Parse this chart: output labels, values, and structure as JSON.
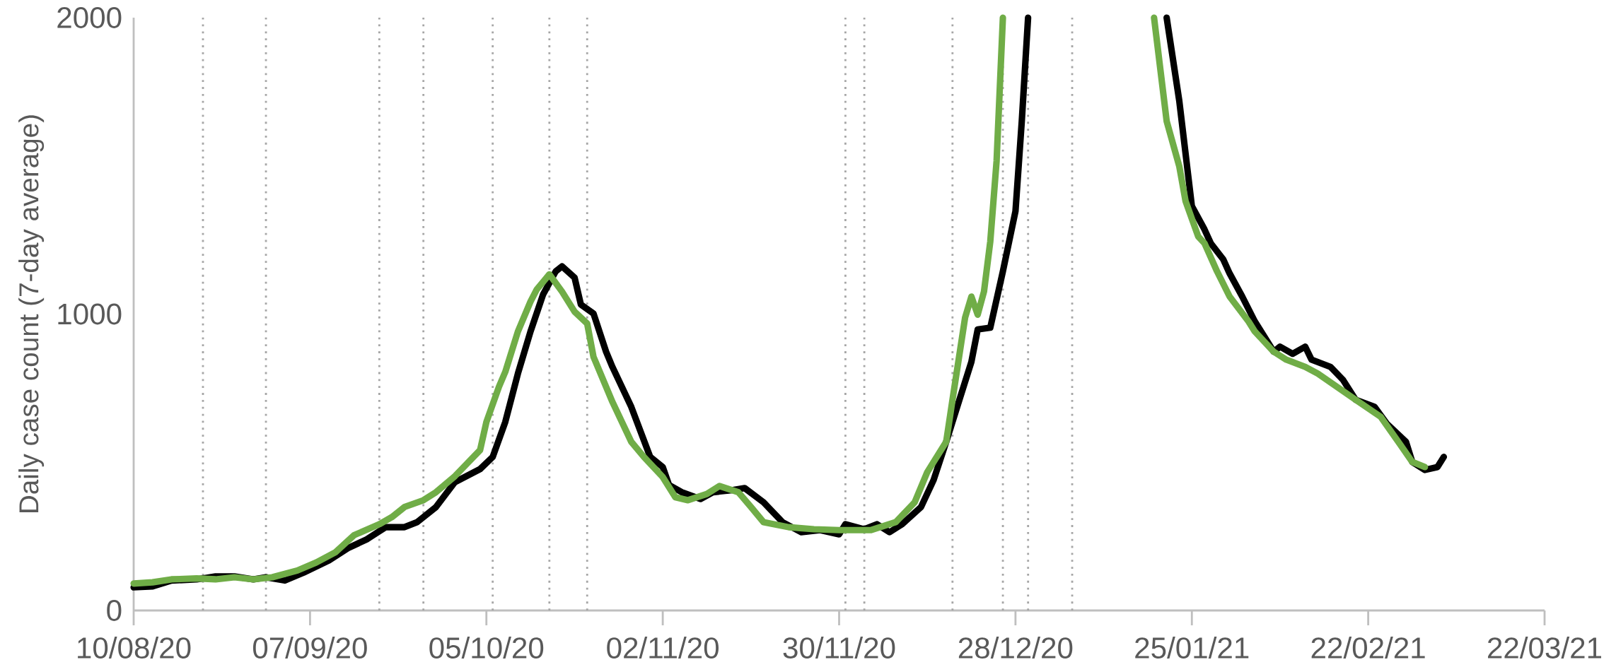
{
  "chart_data": {
    "type": "line",
    "ylabel": "Daily case count (7-day average)",
    "xlim": [
      "2020-08-10",
      "2021-03-22"
    ],
    "xticks": [
      {
        "value": "2020-08-10",
        "label": "10/08/20"
      },
      {
        "value": "2020-09-07",
        "label": "07/09/20"
      },
      {
        "value": "2020-10-05",
        "label": "05/10/20"
      },
      {
        "value": "2020-11-02",
        "label": "02/11/20"
      },
      {
        "value": "2020-11-30",
        "label": "30/11/20"
      },
      {
        "value": "2020-12-28",
        "label": "28/12/20"
      },
      {
        "value": "2021-01-25",
        "label": "25/01/21"
      },
      {
        "value": "2021-02-22",
        "label": "22/02/21"
      },
      {
        "value": "2021-03-22",
        "label": "22/03/21"
      }
    ],
    "ylim": [
      0,
      2000
    ],
    "yticks": [
      0,
      1000,
      2000
    ],
    "grid": false,
    "marker": "none",
    "line_style": "solid",
    "series": [
      {
        "color": "#000000",
        "x": [
          "2020-08-10",
          "2020-08-13",
          "2020-08-16",
          "2020-08-20",
          "2020-08-23",
          "2020-08-26",
          "2020-08-29",
          "2020-08-31",
          "2020-09-03",
          "2020-09-06",
          "2020-09-10",
          "2020-09-13",
          "2020-09-16",
          "2020-09-19",
          "2020-09-22",
          "2020-09-24",
          "2020-09-27",
          "2020-09-30",
          "2020-10-04",
          "2020-10-06",
          "2020-10-08",
          "2020-10-10",
          "2020-10-12",
          "2020-10-14",
          "2020-10-16",
          "2020-10-17",
          "2020-10-19",
          "2020-10-20",
          "2020-10-22",
          "2020-10-24",
          "2020-10-25",
          "2020-10-28",
          "2020-10-31",
          "2020-11-02",
          "2020-11-03",
          "2020-11-05",
          "2020-11-08",
          "2020-11-10",
          "2020-11-13",
          "2020-11-15",
          "2020-11-18",
          "2020-11-21",
          "2020-11-24",
          "2020-11-27",
          "2020-11-30",
          "2020-12-01",
          "2020-12-04",
          "2020-12-06",
          "2020-12-08",
          "2020-12-10",
          "2020-12-13",
          "2020-12-15",
          "2020-12-17",
          "2020-12-19",
          "2020-12-21",
          "2020-12-22",
          "2020-12-24",
          "2020-12-26",
          "2020-12-28",
          "2020-12-29",
          "2020-12-30",
          "2021-01-07",
          "2021-01-21",
          "2021-01-23",
          "2021-01-25",
          "2021-01-27",
          "2021-01-28",
          "2021-01-30",
          "2021-01-31",
          "2021-02-02",
          "2021-02-04",
          "2021-02-07",
          "2021-02-08",
          "2021-02-10",
          "2021-02-12",
          "2021-02-13",
          "2021-02-16",
          "2021-02-18",
          "2021-02-20",
          "2021-02-23",
          "2021-02-25",
          "2021-02-28",
          "2021-03-01",
          "2021-03-03",
          "2021-03-05",
          "2021-03-06"
        ],
        "values": [
          78,
          81,
          101,
          105,
          115,
          115,
          105,
          112,
          101,
          128,
          169,
          210,
          240,
          281,
          281,
          298,
          349,
          433,
          477,
          518,
          636,
          799,
          941,
          1066,
          1144,
          1161,
          1123,
          1032,
          1002,
          873,
          822,
          687,
          518,
          484,
          423,
          399,
          376,
          399,
          406,
          413,
          365,
          298,
          264,
          271,
          257,
          291,
          274,
          291,
          264,
          291,
          349,
          440,
          569,
          704,
          839,
          948,
          954,
          1144,
          1347,
          1651,
          2000,
          null,
          2000,
          1720,
          1364,
          1286,
          1239,
          1184,
          1137,
          1059,
          975,
          873,
          890,
          866,
          890,
          846,
          822,
          778,
          711,
          687,
          629,
          569,
          501,
          474,
          484,
          518
        ]
      },
      {
        "color": "#70ad47",
        "x": [
          "2020-08-10",
          "2020-08-13",
          "2020-08-16",
          "2020-08-20",
          "2020-08-23",
          "2020-08-26",
          "2020-08-29",
          "2020-09-01",
          "2020-09-05",
          "2020-09-08",
          "2020-09-11",
          "2020-09-14",
          "2020-09-18",
          "2020-09-20",
          "2020-09-22",
          "2020-09-25",
          "2020-09-27",
          "2020-09-30",
          "2020-10-04",
          "2020-10-05",
          "2020-10-07",
          "2020-10-08",
          "2020-10-10",
          "2020-10-12",
          "2020-10-13",
          "2020-10-15",
          "2020-10-17",
          "2020-10-19",
          "2020-10-21",
          "2020-10-22",
          "2020-10-25",
          "2020-10-28",
          "2020-10-30",
          "2020-11-02",
          "2020-11-04",
          "2020-11-06",
          "2020-11-09",
          "2020-11-11",
          "2020-11-14",
          "2020-11-16",
          "2020-11-18",
          "2020-11-22",
          "2020-11-26",
          "2020-11-30",
          "2020-12-05",
          "2020-12-09",
          "2020-12-12",
          "2020-12-14",
          "2020-12-17",
          "2020-12-18",
          "2020-12-20",
          "2020-12-21",
          "2020-12-22",
          "2020-12-23",
          "2020-12-24",
          "2020-12-25",
          "2020-12-26",
          "2021-01-07",
          "2021-01-19",
          "2021-01-21",
          "2021-01-23",
          "2021-01-24",
          "2021-01-26",
          "2021-01-27",
          "2021-01-29",
          "2021-01-31",
          "2021-02-03",
          "2021-02-04",
          "2021-02-07",
          "2021-02-09",
          "2021-02-12",
          "2021-02-14",
          "2021-02-17",
          "2021-02-20",
          "2021-02-24",
          "2021-02-27",
          "2021-03-01",
          "2021-03-03"
        ],
        "values": [
          91,
          95,
          105,
          108,
          105,
          112,
          105,
          112,
          135,
          162,
          196,
          254,
          291,
          315,
          349,
          372,
          399,
          453,
          541,
          636,
          755,
          805,
          941,
          1042,
          1083,
          1134,
          1076,
          1008,
          968,
          856,
          704,
          569,
          518,
          450,
          382,
          372,
          393,
          420,
          399,
          349,
          298,
          281,
          274,
          271,
          271,
          298,
          365,
          467,
          569,
          711,
          988,
          1059,
          998,
          1076,
          1245,
          1516,
          2000,
          null,
          2000,
          1651,
          1499,
          1381,
          1262,
          1239,
          1144,
          1059,
          975,
          941,
          873,
          846,
          822,
          799,
          755,
          711,
          653,
          562,
          501,
          484
        ]
      }
    ],
    "ref_lines": [
      {
        "axis": "x",
        "value": "2020-08-21",
        "color": "#a6a6a6",
        "line_style": "dotted"
      },
      {
        "axis": "x",
        "value": "2020-08-31",
        "color": "#a6a6a6",
        "line_style": "dotted"
      },
      {
        "axis": "x",
        "value": "2020-09-18",
        "color": "#a6a6a6",
        "line_style": "dotted"
      },
      {
        "axis": "x",
        "value": "2020-09-25",
        "color": "#a6a6a6",
        "line_style": "dotted"
      },
      {
        "axis": "x",
        "value": "2020-10-06",
        "color": "#a6a6a6",
        "line_style": "dotted"
      },
      {
        "axis": "x",
        "value": "2020-10-15",
        "color": "#a6a6a6",
        "line_style": "dotted"
      },
      {
        "axis": "x",
        "value": "2020-10-21",
        "color": "#a6a6a6",
        "line_style": "dotted"
      },
      {
        "axis": "x",
        "value": "2020-12-01",
        "color": "#a6a6a6",
        "line_style": "dotted"
      },
      {
        "axis": "x",
        "value": "2020-12-04",
        "color": "#a6a6a6",
        "line_style": "dotted"
      },
      {
        "axis": "x",
        "value": "2020-12-18",
        "color": "#a6a6a6",
        "line_style": "dotted"
      },
      {
        "axis": "x",
        "value": "2020-12-26",
        "color": "#a6a6a6",
        "line_style": "dotted"
      },
      {
        "axis": "x",
        "value": "2020-12-30",
        "color": "#a6a6a6",
        "line_style": "dotted"
      },
      {
        "axis": "x",
        "value": "2021-01-06",
        "color": "#a6a6a6",
        "line_style": "dotted"
      }
    ]
  }
}
